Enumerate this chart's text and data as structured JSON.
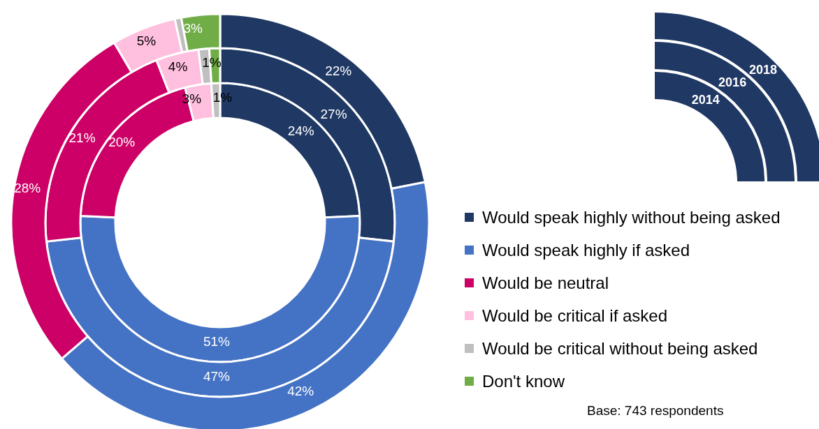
{
  "chart_data": {
    "type": "donut",
    "categories": [
      "Would speak highly without being asked",
      "Would speak highly if asked",
      "Would be neutral",
      "Would be critical if asked",
      "Would be critical without being asked",
      "Don't know"
    ],
    "colors": [
      "#1f3864",
      "#4472c4",
      "#cc0066",
      "#ffbfdf",
      "#bfbfbf",
      "#70ad47"
    ],
    "series": [
      {
        "name": "2014",
        "values": [
          24,
          51,
          20,
          3,
          1,
          null
        ],
        "value_labels": [
          "24%",
          "51%",
          "20%",
          "3%",
          "1%",
          null
        ]
      },
      {
        "name": "2016",
        "values": [
          27,
          47,
          21,
          4,
          1,
          1
        ],
        "value_labels": [
          "27%",
          "47%",
          "21%",
          "4%",
          "1%",
          null
        ]
      },
      {
        "name": "2018",
        "values": [
          22,
          42,
          28,
          5,
          0.5,
          3
        ],
        "value_labels": [
          "22%",
          "42%",
          "28%",
          "5%",
          null,
          "3%"
        ]
      }
    ],
    "legend": "right",
    "annotations": [
      "Base: 743 respondents"
    ]
  }
}
